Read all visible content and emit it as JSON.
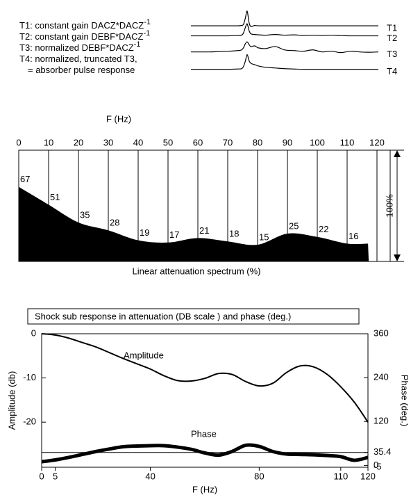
{
  "chart_data": [
    {
      "type": "line",
      "notes": [
        {
          "text": "T1: constant gain DACZ*DACZ",
          "superscript": "-1"
        },
        {
          "text": "T2: constant gain DEBF*DACZ",
          "superscript": "-1"
        },
        {
          "text": "T3: normalized DEBF*DACZ",
          "superscript": "-1"
        },
        {
          "text": "T4: normalized, truncated T3,"
        },
        {
          "text": "= absorber pulse response"
        }
      ],
      "x": [
        0,
        5,
        10,
        15,
        20,
        25,
        27,
        28,
        29,
        30,
        31,
        32,
        34,
        36,
        40,
        45,
        50,
        55,
        60,
        65,
        70,
        75,
        80,
        85,
        90,
        95,
        100
      ],
      "xlim": [
        0,
        100
      ],
      "ylim": [
        0,
        110
      ],
      "series": [
        {
          "name": "T1",
          "color": "#000000",
          "values": [
            85,
            85,
            85,
            85,
            85,
            85,
            85.5,
            87,
            96,
            107,
            90,
            84,
            85.5,
            85,
            85,
            85,
            85,
            85,
            85,
            85,
            85,
            85,
            85,
            85,
            85,
            85,
            85
          ]
        },
        {
          "name": "T2",
          "color": "#000000",
          "values": [
            70,
            70,
            70,
            70,
            70,
            70.5,
            71,
            74,
            82,
            88,
            78,
            73,
            72,
            71.5,
            71,
            72,
            71,
            71.5,
            70.5,
            71,
            70.5,
            71,
            70.5,
            70,
            70,
            70,
            70
          ]
        },
        {
          "name": "T3",
          "color": "#000000",
          "values": [
            46,
            46,
            46,
            46.5,
            47,
            48,
            49,
            52,
            58,
            61,
            57,
            54,
            55,
            52,
            51,
            54,
            49,
            48,
            47,
            49,
            46,
            47,
            45,
            47,
            46,
            45.5,
            46
          ]
        },
        {
          "name": "T4",
          "color": "#000000",
          "values": [
            20,
            20,
            20,
            20,
            20,
            20.5,
            21,
            24,
            32,
            42,
            33,
            29,
            27,
            25,
            23,
            22,
            21,
            20.5,
            20,
            20,
            20,
            20,
            20,
            20,
            20,
            20,
            20
          ]
        }
      ]
    },
    {
      "type": "area",
      "title": "F (Hz)",
      "xlabel": "Linear attenuation spectrum (%)",
      "scale_label": "100%",
      "x": [
        0,
        10,
        20,
        30,
        40,
        50,
        60,
        70,
        80,
        90,
        100,
        110,
        117
      ],
      "values": [
        67,
        51,
        35,
        28,
        19,
        17,
        21,
        18,
        15,
        25,
        22,
        16,
        16
      ],
      "color": "#000000",
      "xlim": [
        0,
        120
      ],
      "ylim": [
        0,
        100
      ],
      "xticks": [
        0,
        10,
        20,
        30,
        40,
        50,
        60,
        70,
        80,
        90,
        100,
        110,
        120
      ]
    },
    {
      "type": "line",
      "title": "Shock sub response in attenuation (DB scale ) and phase (deg.)",
      "xlabel": "F (Hz)",
      "ylabel": "Amplitude (db)",
      "y2label": "Phase (deg.)",
      "x": [
        0,
        5,
        10,
        15,
        20,
        25,
        30,
        35,
        40,
        45,
        50,
        55,
        60,
        65,
        70,
        75,
        80,
        85,
        90,
        95,
        100,
        105,
        110,
        115,
        120
      ],
      "xlim": [
        0,
        120
      ],
      "ylim": [
        -30.2,
        0
      ],
      "y2lim": [
        -5,
        360
      ],
      "xticks": [
        0,
        5,
        40,
        80,
        110,
        120
      ],
      "yticks": [
        0,
        -10,
        -20
      ],
      "y2ticks": [
        -5,
        0,
        35.4,
        120,
        240,
        360
      ],
      "reference_lines": [
        {
          "value": 35.4,
          "axis": "y2"
        }
      ],
      "series": [
        {
          "name": "Amplitude",
          "color": "#000000",
          "values": [
            0,
            -0.3,
            -1,
            -2,
            -3,
            -4.3,
            -5.6,
            -6.8,
            -8,
            -9.5,
            -10.6,
            -10.7,
            -10.1,
            -9,
            -9.2,
            -10.8,
            -11.8,
            -11.2,
            -8.8,
            -7.3,
            -7.5,
            -9.2,
            -12,
            -15.5,
            -20
          ]
        },
        {
          "name": "Phase",
          "color": "#000000",
          "axis": "y2",
          "values": [
            10,
            15,
            22,
            30,
            38,
            45,
            51,
            53,
            54,
            54,
            50,
            44,
            34,
            28,
            38,
            55,
            52,
            38,
            31,
            30,
            29,
            27,
            24,
            14,
            22
          ]
        }
      ]
    }
  ]
}
